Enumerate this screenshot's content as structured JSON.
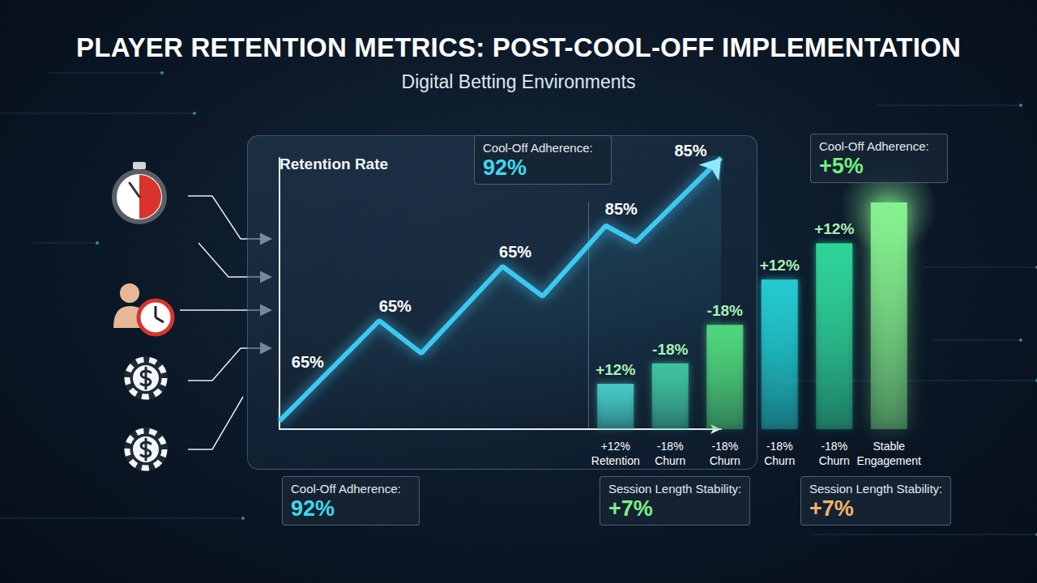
{
  "chart_data": [
    {
      "type": "line",
      "title": "PLAYER RETENTION METRICS: POST-COOL-OFF IMPLEMENTATION",
      "subtitle": "Digital Betting Environments",
      "ylabel": "Retention Rate",
      "x": [
        0,
        22.6,
        32.1,
        50.5,
        59.6,
        73.9,
        80.7,
        100
      ],
      "values": [
        3,
        40,
        28,
        60,
        49,
        75,
        69,
        100
      ],
      "color": "#3cc8f0",
      "xlim": [
        0,
        100
      ],
      "ylim": [
        0,
        100
      ],
      "xticks": [],
      "yticks": [],
      "tick_labels": false,
      "grid": false,
      "annotations": [
        {
          "text": "65%",
          "x": 6.4,
          "y": 24.8
        },
        {
          "text": "65%",
          "x": 26.2,
          "y": 45.4
        },
        {
          "text": "65%",
          "x": 53.4,
          "y": 65.4
        },
        {
          "text": "85%",
          "x": 77.4,
          "y": 81.2
        },
        {
          "text": "85%",
          "x": 93.1,
          "y": 102.7
        }
      ]
    },
    {
      "type": "bar",
      "categories": [
        "+12% Retention",
        "-18% Churn",
        "-18% Churn",
        "-18% Churn",
        "-18% Churn",
        "Stable Engagement"
      ],
      "values": [
        20,
        29,
        46,
        66,
        82,
        100
      ],
      "colors": [
        "#45c9c4",
        "#3fc3a0",
        "#4fd67c",
        "#22cbd0",
        "#2fd49a",
        "#86f28e"
      ],
      "top_labels": [
        "+12%",
        "-18%",
        "-18%",
        "+12%",
        "+12%",
        null
      ],
      "ylim": [
        0,
        100
      ],
      "yticks": [],
      "tick_labels": "x",
      "grid": false
    }
  ],
  "info_boxes": [
    {
      "label": "Cool-Off Adherence:",
      "value": "92%"
    },
    {
      "label": "Cool-Off Adherence:",
      "value": "+5%"
    },
    {
      "label": "Cool-Off Adherence:",
      "value": "92%"
    },
    {
      "label": "Session Length Stability:",
      "value": "+7%"
    },
    {
      "label": "Session Length Stability:",
      "value": "+7%"
    }
  ]
}
